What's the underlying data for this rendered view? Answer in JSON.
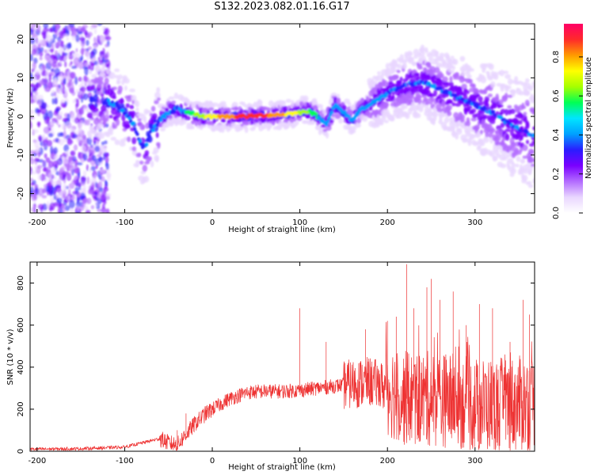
{
  "title": "S132.2023.082.01.16.G17",
  "colors": {
    "snr_line": "#ee3333",
    "colormap": [
      "#ffffff",
      "#e9d6ff",
      "#b36bff",
      "#7a00ff",
      "#2a1cff",
      "#00a0ff",
      "#00e5ff",
      "#00ff55",
      "#a6ff00",
      "#ffff00",
      "#ff9a00",
      "#ff2a2a",
      "#ff0066"
    ]
  },
  "chart_data": [
    {
      "type": "heatmap",
      "xlabel": "Height of straight line (km)",
      "ylabel": "Frequency (Hz)",
      "xlim": [
        -208,
        368
      ],
      "ylim": [
        -25,
        24
      ],
      "xticks": [
        -200,
        -100,
        0,
        100,
        200,
        300
      ],
      "yticks": [
        -20,
        -10,
        0,
        10,
        20
      ],
      "ridge": {
        "x": [
          -120,
          -110,
          -100,
          -90,
          -85,
          -80,
          -75,
          -70,
          -60,
          -50,
          -40,
          -30,
          -20,
          -10,
          0,
          20,
          40,
          60,
          80,
          100,
          110,
          120,
          125,
          130,
          140,
          150,
          160,
          170,
          180,
          200,
          220,
          240,
          260,
          280,
          300,
          320,
          340,
          368
        ],
        "y": [
          4,
          3,
          1,
          -2,
          -5,
          -8,
          -7,
          -4,
          -1,
          1,
          2,
          1,
          0.5,
          0,
          0,
          0,
          0,
          0.3,
          0.5,
          1,
          1.5,
          0,
          -1,
          -2,
          3,
          1,
          -1,
          2,
          3,
          6,
          8,
          9,
          7,
          5,
          3,
          1,
          -2,
          -5
        ]
      },
      "colorbar": {
        "label": "Normalized spectral amplitude",
        "range": [
          0,
          0.97
        ],
        "ticks": [
          0.0,
          0.2,
          0.4,
          0.6,
          0.8
        ]
      }
    },
    {
      "type": "line",
      "xlabel": "Height of straight line (km)",
      "ylabel": "SNR (10 * v/v)",
      "xlim": [
        -208,
        368
      ],
      "ylim": [
        0,
        900
      ],
      "xticks": [
        -200,
        -100,
        0,
        100,
        200,
        300
      ],
      "yticks": [
        0,
        200,
        400,
        600,
        800
      ],
      "series": [
        {
          "envelope_x": [
            -208,
            -150,
            -100,
            -80,
            -60,
            -50,
            -40,
            -30,
            -20,
            -10,
            0,
            20,
            40,
            60,
            80,
            100,
            120,
            140,
            160,
            180,
            200,
            220,
            250,
            280,
            300,
            330,
            368
          ],
          "envelope_y": [
            10,
            12,
            20,
            40,
            60,
            40,
            30,
            80,
            130,
            170,
            200,
            250,
            280,
            285,
            285,
            290,
            300,
            310,
            320,
            330,
            300,
            250,
            250,
            240,
            220,
            220,
            230
          ],
          "spikes_x": [
            -40,
            -30,
            100,
            130,
            175,
            200,
            210,
            222,
            230,
            245,
            250,
            260,
            275,
            290,
            305,
            320,
            340,
            355,
            362
          ],
          "spikes_y": [
            100,
            180,
            680,
            520,
            580,
            620,
            640,
            890,
            680,
            780,
            820,
            720,
            760,
            600,
            700,
            680,
            520,
            720,
            650
          ]
        }
      ]
    }
  ]
}
